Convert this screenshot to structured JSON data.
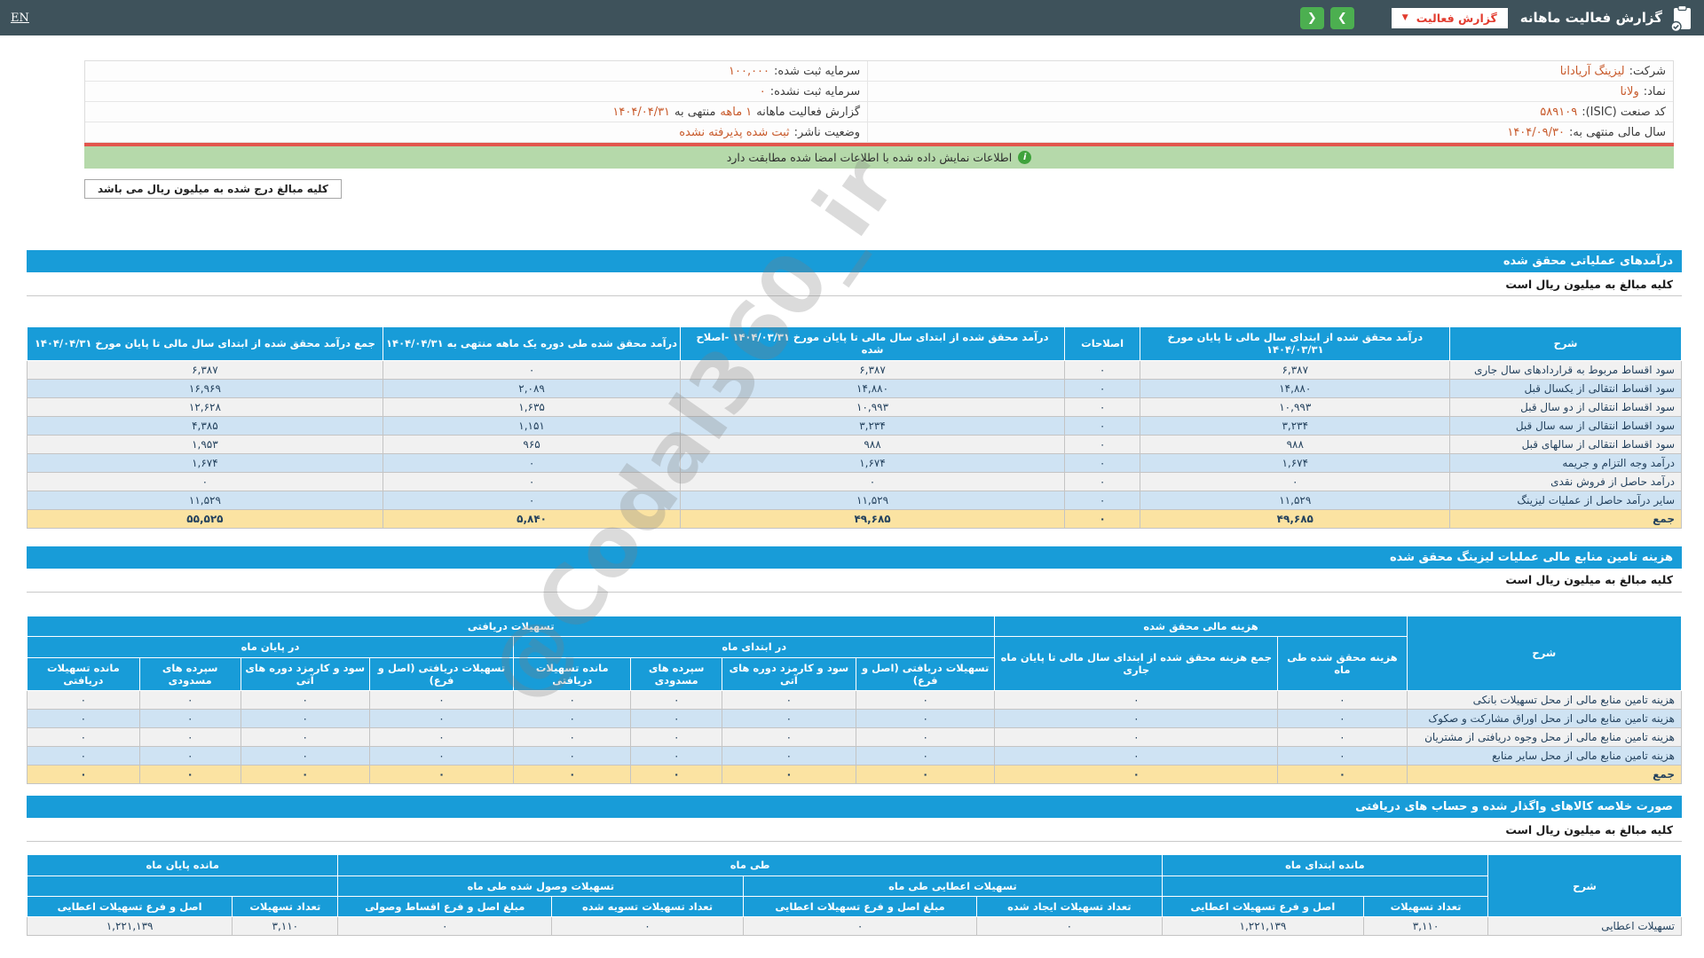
{
  "colors": {
    "topbar": "#3e525b",
    "accent-blue": "#189cd8",
    "green": "#4caf50",
    "red": "#e23b2e",
    "orange": "#c85a2b",
    "cream": "#fdeab5",
    "cream-total": "#fbe3a2",
    "stripe-blue": "#cfe3f3",
    "stripe-gray": "#f1f1f1",
    "notice-green": "#b5d9aa",
    "red-line": "#e2564d"
  },
  "topbar": {
    "lang": "EN",
    "title": "گزارش فعالیت ماهانه",
    "dropdown_label": "گزارش فعالیت",
    "caret": "▼",
    "nav_next": "❯",
    "nav_prev": "❮"
  },
  "info": {
    "rows": [
      {
        "right_label": "شرکت:",
        "right_value": "لیزینگ آریادانا",
        "left_label": "سرمایه ثبت شده:",
        "left_value": "۱۰۰,۰۰۰"
      },
      {
        "right_label": "نماد:",
        "right_value": "ولانا",
        "left_label": "سرمایه ثبت نشده:",
        "left_value": "۰"
      },
      {
        "right_label": "کد صنعت (ISIC):",
        "right_value": "۵۸۹۱۰۹",
        "left_label": "گزارش فعالیت ماهانه",
        "left_hl": "۱ ماهه",
        "left_label2": "منتهی به",
        "left_value": "۱۴۰۴/۰۴/۳۱"
      },
      {
        "right_label": "سال مالی منتهی به:",
        "right_value": "۱۴۰۴/۰۹/۳۰",
        "left_label": "وضعیت ناشر:",
        "left_value": "ثبت شده پذیرفته نشده"
      }
    ],
    "notice": "اطلاعات نمایش داده شده با اطلاعات امضا شده مطابقت دارد",
    "notice_icon": "i",
    "unit_button": "کلیه مبالغ درج شده به میلیون ریال می باشد"
  },
  "watermark": "@Codal360_ir",
  "section1": {
    "title": "درآمدهای عملیاتی محقق شده",
    "unit_note": "کلیه مبالغ به میلیون ریال است",
    "table": {
      "col_desc": "شرح",
      "col_prev": "درآمد محقق شده از ابتدای سال مالی تا پایان مورخ ۱۴۰۴/۰۳/۳۱",
      "col_adjustments": "اصلاحات",
      "col_prev_adjusted": "درآمد محقق شده از ابتدای سال مالی تا پایان مورخ ۱۴۰۴/۰۳/۳۱ -اصلاح شده",
      "col_month": "درآمد محقق شده طی دوره یک ماهه منتهی به ۱۴۰۴/۰۴/۳۱",
      "col_total": "جمع درآمد محقق شده از ابتدای سال مالی تا پایان مورخ ۱۴۰۴/۰۴/۳۱",
      "rows": [
        {
          "label": "سود اقساط مربوط به قراردادهای سال جاری",
          "values": [
            "۶,۳۸۷",
            "۰",
            "۶,۳۸۷",
            "۰",
            "۶,۳۸۷"
          ]
        },
        {
          "label": "سود اقساط انتقالی از یکسال قبل",
          "values": [
            "۱۴,۸۸۰",
            "۰",
            "۱۴,۸۸۰",
            "۲,۰۸۹",
            "۱۶,۹۶۹"
          ]
        },
        {
          "label": "سود اقساط انتقالی از دو سال قبل",
          "values": [
            "۱۰,۹۹۳",
            "۰",
            "۱۰,۹۹۳",
            "۱,۶۳۵",
            "۱۲,۶۲۸"
          ]
        },
        {
          "label": "سود اقساط انتقالی از سه سال قبل",
          "values": [
            "۳,۲۳۴",
            "۰",
            "۳,۲۳۴",
            "۱,۱۵۱",
            "۴,۳۸۵"
          ]
        },
        {
          "label": "سود اقساط انتقالی از سالهای قبل",
          "values": [
            "۹۸۸",
            "۰",
            "۹۸۸",
            "۹۶۵",
            "۱,۹۵۳"
          ]
        },
        {
          "label": "درآمد وجه التزام و جریمه",
          "values": [
            "۱,۶۷۴",
            "۰",
            "۱,۶۷۴",
            "۰",
            "۱,۶۷۴"
          ]
        },
        {
          "label": "درآمد حاصل از فروش نقدی",
          "values": [
            "۰",
            "۰",
            "۰",
            "۰",
            "۰"
          ]
        },
        {
          "label": "سایر درآمد حاصل از عملیات لیزینگ",
          "values": [
            "۱۱,۵۲۹",
            "۰",
            "۱۱,۵۲۹",
            "۰",
            "۱۱,۵۲۹"
          ]
        },
        {
          "label": "جمع",
          "total": true,
          "values": [
            "۴۹,۶۸۵",
            "۰",
            "۴۹,۶۸۵",
            "۵,۸۴۰",
            "۵۵,۵۲۵"
          ]
        }
      ]
    }
  },
  "section2": {
    "title": "هزینه تامین منابع مالی عملیات لیزینگ محقق شده",
    "unit_note": "کلیه مبالغ به میلیون ریال است",
    "table": {
      "col_desc": "شرح",
      "group_fin": "هزینه مالی محقق شده",
      "col_month": "هزینه محقق شده طی ماه",
      "col_cum": "جمع هزینه محقق شده از ابتدای سال مالی تا پایان ماه جاری",
      "group_fac": "تسهیلات دریافتی",
      "group_begin": "در ابتدای ماه",
      "group_end": "در پایان ماه",
      "leaf_principal": "تسهیلات دریافتی (اصل و فرع)",
      "leaf_future_fees": "سود و کارمزد دوره های آتی",
      "leaf_blocked": "سپرده های مسدودی",
      "leaf_balance": "مانده تسهیلات دریافتی",
      "rows": [
        {
          "label": "هزینه تامین منابع مالی از محل تسهیلات بانکی",
          "values": [
            "۰",
            "۰",
            "۰",
            "۰",
            "۰",
            "۰",
            "۰",
            "۰",
            "۰",
            "۰"
          ]
        },
        {
          "label": "هزینه تامین منابع مالی از محل اوراق مشارکت و صکوک",
          "values": [
            "۰",
            "۰",
            "۰",
            "۰",
            "۰",
            "۰",
            "۰",
            "۰",
            "۰",
            "۰"
          ]
        },
        {
          "label": "هزینه تامین منابع مالی از محل وجوه دریافتی از مشتریان",
          "values": [
            "۰",
            "۰",
            "۰",
            "۰",
            "۰",
            "۰",
            "۰",
            "۰",
            "۰",
            "۰"
          ]
        },
        {
          "label": "هزینه تامین منابع مالی از محل سایر منابع",
          "values": [
            "۰",
            "۰",
            "۰",
            "۰",
            "۰",
            "۰",
            "۰",
            "۰",
            "۰",
            "۰"
          ]
        },
        {
          "label": "جمع",
          "total": true,
          "values": [
            "۰",
            "۰",
            "۰",
            "۰",
            "۰",
            "۰",
            "۰",
            "۰",
            "۰",
            "۰"
          ]
        }
      ]
    }
  },
  "section3": {
    "title": "صورت خلاصه کالاهای واگذار شده و حساب های دریافتی",
    "unit_note": "کلیه مبالغ به میلیون ریال است",
    "table": {
      "col_desc": "شرح",
      "group_begin": "مانده ابتدای ماه",
      "group_during": "طی ماه",
      "group_end": "مانده پایان ماه",
      "sub_granted": "تسهیلات اعطایی طی ماه",
      "sub_collected": "تسهیلات وصول شده طی ماه",
      "leaf_count": "تعداد تسهیلات",
      "leaf_principal": "اصل و فرع تسهیلات اعطایی",
      "leaf_created": "تعداد تسهیلات ایجاد شده",
      "leaf_granted_amount": "مبلغ اصل و فرع تسهیلات اعطایی",
      "leaf_settled": "تعداد تسهیلات تسویه شده",
      "leaf_collected_amount": "مبلغ اصل و فرع اقساط وصولی",
      "rows": [
        {
          "label": "تسهیلات اعطایی",
          "values": [
            "۳,۱۱۰",
            "۱,۲۲۱,۱۳۹",
            "۰",
            "۰",
            "۰",
            "۰",
            "۳,۱۱۰",
            "۱,۲۲۱,۱۳۹"
          ]
        }
      ]
    }
  }
}
